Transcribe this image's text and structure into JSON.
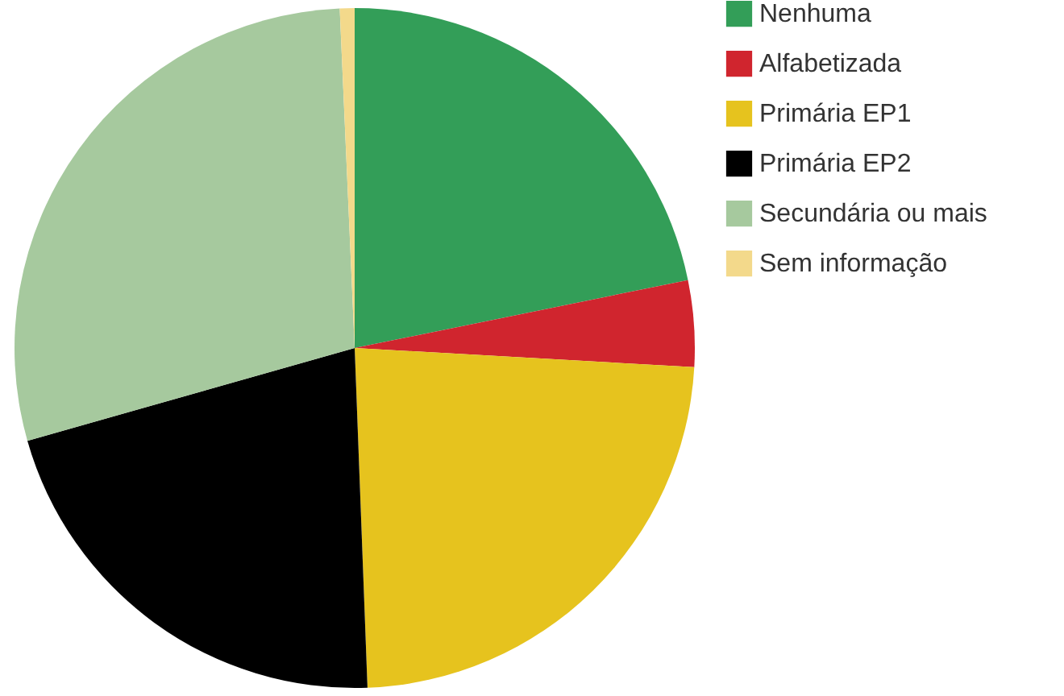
{
  "chart_data": {
    "type": "pie",
    "categories": [
      "Nenhuma",
      "Alfabetizada",
      "Primária EP1",
      "Primária EP2",
      "Secundária ou mais",
      "Sem informação"
    ],
    "values": [
      21.8,
      4.1,
      23.5,
      21.2,
      28.7,
      0.7
    ],
    "colors": [
      "#339e58",
      "#d0252e",
      "#e6c31e",
      "#000000",
      "#a6c99e",
      "#f3d98b"
    ],
    "legend": "right"
  }
}
